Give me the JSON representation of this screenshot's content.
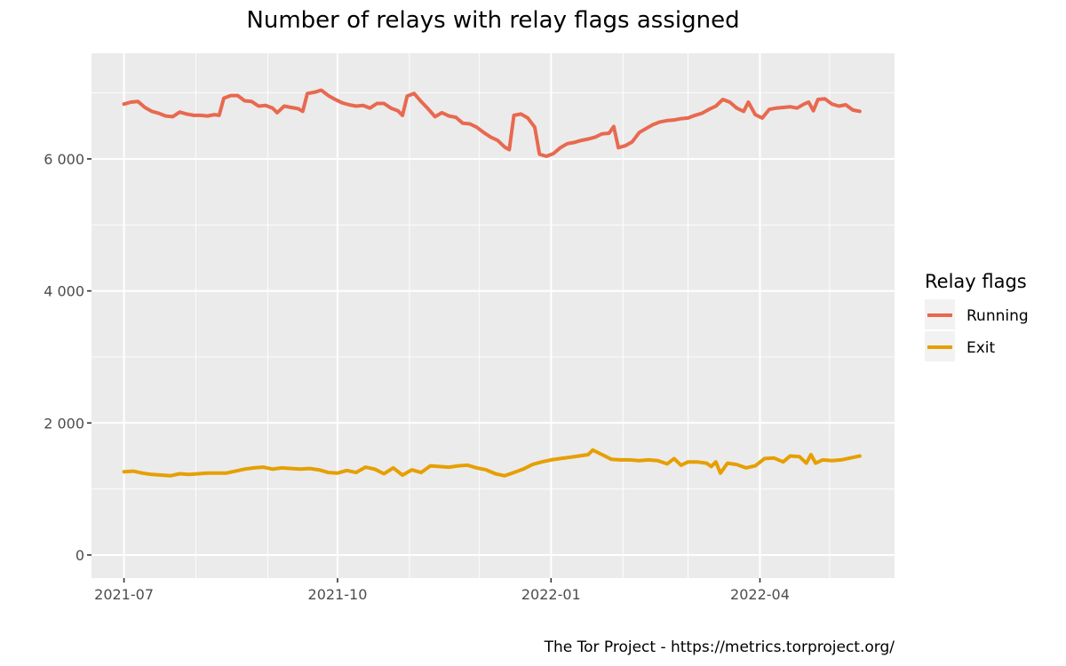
{
  "chart_data": {
    "type": "line",
    "title": "Number of relays with relay flags assigned",
    "xlabel": "",
    "ylabel": "",
    "caption": "The Tor Project - https://metrics.torproject.org/",
    "ylim": [
      -350,
      7600
    ],
    "xlim": [
      "2021-06-17",
      "2022-05-29"
    ],
    "y_ticks": [
      0,
      2000,
      4000,
      6000
    ],
    "y_tick_labels": [
      "0",
      "2 000",
      "4 000",
      "6 000"
    ],
    "x_ticks": [
      "2021-07-01",
      "2021-10-01",
      "2022-01-01",
      "2022-04-01"
    ],
    "x_tick_labels": [
      "2021-07",
      "2021-10",
      "2022-01",
      "2022-04"
    ],
    "grid": true,
    "legend": {
      "title": "Relay flags",
      "position": "right",
      "entries": [
        "Running",
        "Exit"
      ]
    },
    "colors": {
      "Running": "#e8694f",
      "Exit": "#e69f00",
      "panel": "#ebebeb",
      "grid": "#ffffff"
    },
    "series": [
      {
        "name": "Running",
        "points": [
          [
            "2021-07-01",
            6830
          ],
          [
            "2021-07-04",
            6860
          ],
          [
            "2021-07-07",
            6870
          ],
          [
            "2021-07-10",
            6780
          ],
          [
            "2021-07-13",
            6720
          ],
          [
            "2021-07-16",
            6690
          ],
          [
            "2021-07-19",
            6650
          ],
          [
            "2021-07-22",
            6640
          ],
          [
            "2021-07-25",
            6710
          ],
          [
            "2021-07-28",
            6680
          ],
          [
            "2021-07-31",
            6660
          ],
          [
            "2021-08-03",
            6660
          ],
          [
            "2021-08-06",
            6650
          ],
          [
            "2021-08-09",
            6670
          ],
          [
            "2021-08-11",
            6660
          ],
          [
            "2021-08-13",
            6920
          ],
          [
            "2021-08-16",
            6960
          ],
          [
            "2021-08-19",
            6960
          ],
          [
            "2021-08-22",
            6880
          ],
          [
            "2021-08-25",
            6870
          ],
          [
            "2021-08-28",
            6800
          ],
          [
            "2021-08-31",
            6810
          ],
          [
            "2021-09-03",
            6770
          ],
          [
            "2021-09-05",
            6700
          ],
          [
            "2021-09-08",
            6800
          ],
          [
            "2021-09-11",
            6780
          ],
          [
            "2021-09-14",
            6760
          ],
          [
            "2021-09-16",
            6720
          ],
          [
            "2021-09-18",
            6990
          ],
          [
            "2021-09-21",
            7010
          ],
          [
            "2021-09-24",
            7040
          ],
          [
            "2021-09-27",
            6960
          ],
          [
            "2021-09-30",
            6900
          ],
          [
            "2021-10-03",
            6850
          ],
          [
            "2021-10-06",
            6820
          ],
          [
            "2021-10-09",
            6800
          ],
          [
            "2021-10-12",
            6810
          ],
          [
            "2021-10-15",
            6770
          ],
          [
            "2021-10-18",
            6840
          ],
          [
            "2021-10-21",
            6840
          ],
          [
            "2021-10-24",
            6770
          ],
          [
            "2021-10-27",
            6730
          ],
          [
            "2021-10-29",
            6660
          ],
          [
            "2021-10-31",
            6950
          ],
          [
            "2021-11-03",
            6990
          ],
          [
            "2021-11-06",
            6870
          ],
          [
            "2021-11-09",
            6760
          ],
          [
            "2021-11-12",
            6640
          ],
          [
            "2021-11-15",
            6700
          ],
          [
            "2021-11-18",
            6650
          ],
          [
            "2021-11-21",
            6630
          ],
          [
            "2021-11-24",
            6540
          ],
          [
            "2021-11-27",
            6530
          ],
          [
            "2021-11-30",
            6480
          ],
          [
            "2021-12-03",
            6400
          ],
          [
            "2021-12-06",
            6330
          ],
          [
            "2021-12-09",
            6280
          ],
          [
            "2021-12-12",
            6180
          ],
          [
            "2021-12-14",
            6140
          ],
          [
            "2021-12-16",
            6660
          ],
          [
            "2021-12-19",
            6680
          ],
          [
            "2021-12-22",
            6620
          ],
          [
            "2021-12-25",
            6480
          ],
          [
            "2021-12-27",
            6070
          ],
          [
            "2021-12-30",
            6040
          ],
          [
            "2022-01-02",
            6080
          ],
          [
            "2022-01-05",
            6170
          ],
          [
            "2022-01-08",
            6230
          ],
          [
            "2022-01-11",
            6250
          ],
          [
            "2022-01-14",
            6280
          ],
          [
            "2022-01-17",
            6300
          ],
          [
            "2022-01-20",
            6330
          ],
          [
            "2022-01-23",
            6380
          ],
          [
            "2022-01-26",
            6390
          ],
          [
            "2022-01-28",
            6490
          ],
          [
            "2022-01-30",
            6170
          ],
          [
            "2022-02-02",
            6200
          ],
          [
            "2022-02-05",
            6260
          ],
          [
            "2022-02-08",
            6400
          ],
          [
            "2022-02-11",
            6460
          ],
          [
            "2022-02-14",
            6520
          ],
          [
            "2022-02-17",
            6560
          ],
          [
            "2022-02-20",
            6580
          ],
          [
            "2022-02-23",
            6590
          ],
          [
            "2022-02-26",
            6610
          ],
          [
            "2022-03-01",
            6620
          ],
          [
            "2022-03-04",
            6660
          ],
          [
            "2022-03-07",
            6690
          ],
          [
            "2022-03-10",
            6750
          ],
          [
            "2022-03-13",
            6800
          ],
          [
            "2022-03-16",
            6900
          ],
          [
            "2022-03-19",
            6860
          ],
          [
            "2022-03-22",
            6770
          ],
          [
            "2022-03-25",
            6720
          ],
          [
            "2022-03-27",
            6860
          ],
          [
            "2022-03-30",
            6670
          ],
          [
            "2022-04-02",
            6620
          ],
          [
            "2022-04-05",
            6750
          ],
          [
            "2022-04-08",
            6770
          ],
          [
            "2022-04-11",
            6780
          ],
          [
            "2022-04-14",
            6790
          ],
          [
            "2022-04-17",
            6770
          ],
          [
            "2022-04-20",
            6830
          ],
          [
            "2022-04-22",
            6860
          ],
          [
            "2022-04-24",
            6730
          ],
          [
            "2022-04-26",
            6900
          ],
          [
            "2022-04-29",
            6910
          ],
          [
            "2022-05-02",
            6830
          ],
          [
            "2022-05-05",
            6800
          ],
          [
            "2022-05-08",
            6820
          ],
          [
            "2022-05-11",
            6740
          ],
          [
            "2022-05-14",
            6720
          ]
        ]
      },
      {
        "name": "Exit",
        "points": [
          [
            "2021-07-01",
            1260
          ],
          [
            "2021-07-05",
            1270
          ],
          [
            "2021-07-09",
            1240
          ],
          [
            "2021-07-13",
            1220
          ],
          [
            "2021-07-17",
            1210
          ],
          [
            "2021-07-21",
            1200
          ],
          [
            "2021-07-25",
            1230
          ],
          [
            "2021-07-29",
            1220
          ],
          [
            "2021-08-02",
            1230
          ],
          [
            "2021-08-06",
            1240
          ],
          [
            "2021-08-10",
            1240
          ],
          [
            "2021-08-14",
            1240
          ],
          [
            "2021-08-18",
            1270
          ],
          [
            "2021-08-22",
            1300
          ],
          [
            "2021-08-26",
            1320
          ],
          [
            "2021-08-30",
            1330
          ],
          [
            "2021-09-03",
            1300
          ],
          [
            "2021-09-07",
            1320
          ],
          [
            "2021-09-11",
            1310
          ],
          [
            "2021-09-15",
            1300
          ],
          [
            "2021-09-19",
            1310
          ],
          [
            "2021-09-23",
            1290
          ],
          [
            "2021-09-27",
            1250
          ],
          [
            "2021-10-01",
            1240
          ],
          [
            "2021-10-05",
            1280
          ],
          [
            "2021-10-09",
            1250
          ],
          [
            "2021-10-13",
            1330
          ],
          [
            "2021-10-17",
            1300
          ],
          [
            "2021-10-21",
            1230
          ],
          [
            "2021-10-25",
            1320
          ],
          [
            "2021-10-29",
            1210
          ],
          [
            "2021-11-02",
            1290
          ],
          [
            "2021-11-06",
            1250
          ],
          [
            "2021-11-10",
            1350
          ],
          [
            "2021-11-14",
            1340
          ],
          [
            "2021-11-18",
            1330
          ],
          [
            "2021-11-22",
            1350
          ],
          [
            "2021-11-26",
            1360
          ],
          [
            "2021-11-30",
            1320
          ],
          [
            "2021-12-04",
            1290
          ],
          [
            "2021-12-08",
            1230
          ],
          [
            "2021-12-12",
            1200
          ],
          [
            "2021-12-16",
            1250
          ],
          [
            "2021-12-20",
            1300
          ],
          [
            "2021-12-24",
            1370
          ],
          [
            "2021-12-28",
            1410
          ],
          [
            "2022-01-01",
            1440
          ],
          [
            "2022-01-05",
            1460
          ],
          [
            "2022-01-09",
            1480
          ],
          [
            "2022-01-13",
            1500
          ],
          [
            "2022-01-17",
            1520
          ],
          [
            "2022-01-19",
            1590
          ],
          [
            "2022-01-23",
            1520
          ],
          [
            "2022-01-27",
            1450
          ],
          [
            "2022-01-31",
            1440
          ],
          [
            "2022-02-04",
            1440
          ],
          [
            "2022-02-08",
            1430
          ],
          [
            "2022-02-12",
            1440
          ],
          [
            "2022-02-16",
            1430
          ],
          [
            "2022-02-20",
            1380
          ],
          [
            "2022-02-23",
            1460
          ],
          [
            "2022-02-26",
            1360
          ],
          [
            "2022-03-01",
            1410
          ],
          [
            "2022-03-05",
            1410
          ],
          [
            "2022-03-09",
            1390
          ],
          [
            "2022-03-11",
            1340
          ],
          [
            "2022-03-13",
            1410
          ],
          [
            "2022-03-15",
            1240
          ],
          [
            "2022-03-18",
            1390
          ],
          [
            "2022-03-22",
            1370
          ],
          [
            "2022-03-26",
            1320
          ],
          [
            "2022-03-30",
            1350
          ],
          [
            "2022-04-03",
            1460
          ],
          [
            "2022-04-07",
            1470
          ],
          [
            "2022-04-11",
            1410
          ],
          [
            "2022-04-14",
            1500
          ],
          [
            "2022-04-18",
            1490
          ],
          [
            "2022-04-21",
            1390
          ],
          [
            "2022-04-23",
            1520
          ],
          [
            "2022-04-25",
            1390
          ],
          [
            "2022-04-28",
            1440
          ],
          [
            "2022-05-02",
            1430
          ],
          [
            "2022-05-06",
            1440
          ],
          [
            "2022-05-10",
            1470
          ],
          [
            "2022-05-14",
            1500
          ]
        ]
      }
    ]
  }
}
